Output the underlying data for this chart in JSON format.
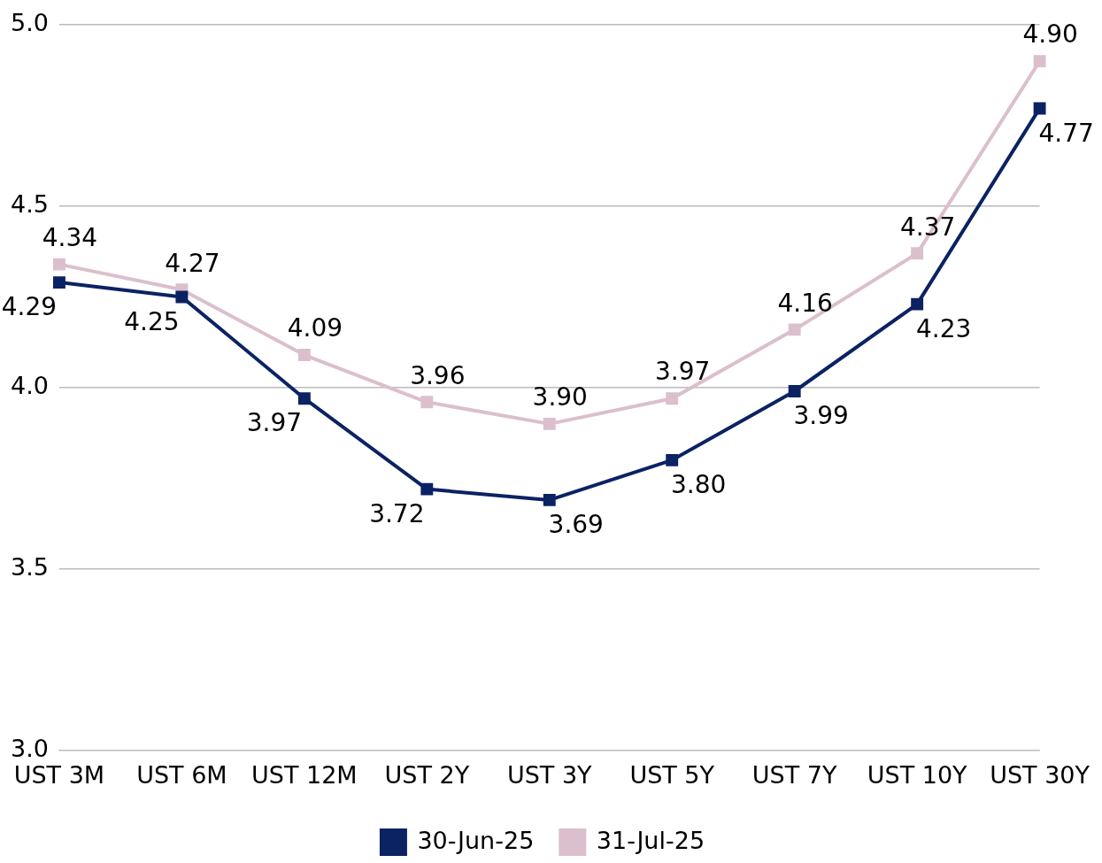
{
  "chart_data": {
    "type": "line",
    "categories": [
      "UST 3M",
      "UST 6M",
      "UST 12M",
      "UST 2Y",
      "UST 3Y",
      "UST 5Y",
      "UST 7Y",
      "UST 10Y",
      "UST 30Y"
    ],
    "series": [
      {
        "name": "30-Jun-25",
        "color": "#0b2263",
        "values": [
          4.29,
          4.25,
          3.97,
          3.72,
          3.69,
          3.8,
          3.99,
          4.23,
          4.77
        ],
        "value_labels": [
          "4.29",
          "4.25",
          "3.97",
          "3.72",
          "3.69",
          "3.80",
          "3.99",
          "4.23",
          "4.77"
        ]
      },
      {
        "name": "31-Jul-25",
        "color": "#dbbfcd",
        "values": [
          4.34,
          4.27,
          4.09,
          3.96,
          3.9,
          3.97,
          4.16,
          4.37,
          4.9
        ],
        "value_labels": [
          "4.34",
          "4.27",
          "4.09",
          "3.96",
          "3.90",
          "3.97",
          "4.16",
          "4.37",
          "4.90"
        ]
      }
    ],
    "ylim": [
      3,
      5
    ],
    "yticks": [
      {
        "value": 3,
        "label": "3.0"
      },
      {
        "value": 3.5,
        "label": "3.5"
      },
      {
        "value": 4,
        "label": "4.0"
      },
      {
        "value": 4.5,
        "label": "4.5"
      },
      {
        "value": 5,
        "label": "5.0"
      }
    ],
    "grid": "y",
    "legend": "bottom",
    "marker": "square",
    "line_style": "solid"
  }
}
